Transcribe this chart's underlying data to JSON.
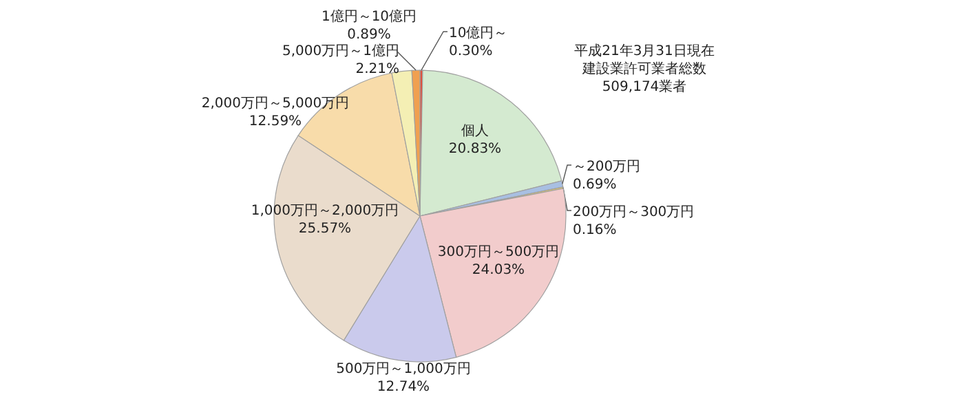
{
  "chart_data": {
    "type": "pie",
    "categories": [
      "10億円～",
      "個人",
      "～200万円",
      "200万円～300万円",
      "300万円～500万円",
      "500万円～1,000万円",
      "1,000万円～2,000万円",
      "2,000万円～5,000万円",
      "5,000万円～1億円",
      "1億円～10億円"
    ],
    "values": [
      0.3,
      20.83,
      0.69,
      0.16,
      24.03,
      12.74,
      25.57,
      12.59,
      2.21,
      0.89
    ],
    "value_labels": [
      "0.30%",
      "20.83%",
      "0.69%",
      "0.16%",
      "24.03%",
      "12.74%",
      "25.57%",
      "12.59%",
      "2.21%",
      "0.89%"
    ],
    "colors": [
      "#e0503c",
      "#d4ead0",
      "#a8bfe2",
      "#f0d060",
      "#f2cccc",
      "#cacaec",
      "#eadccc",
      "#f8dcaa",
      "#f4efb4",
      "#f0a050"
    ],
    "annotations": [
      "平成21年3月31日現在",
      "建設業許可業者総数",
      "509,174業者"
    ]
  }
}
